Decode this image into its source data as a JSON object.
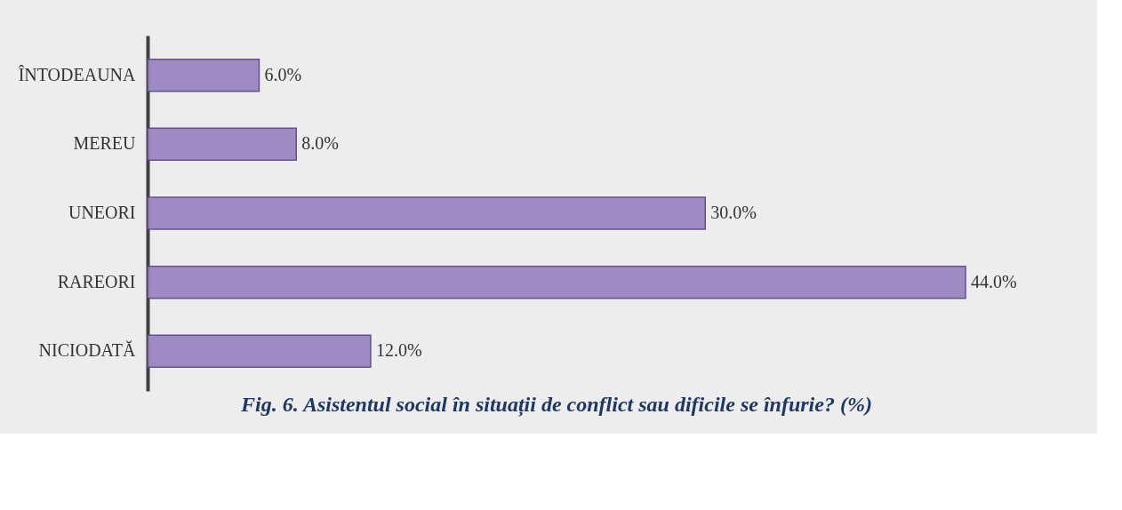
{
  "chart_data": {
    "type": "bar",
    "orientation": "horizontal",
    "title": "Fig. 6. Asistentul social în situații de conflict sau dificile se înfurie? (%)",
    "categories": [
      "ÎNTODEAUNA",
      "MEREU",
      "UNEORI",
      "RAREORI",
      "NICIODATĂ"
    ],
    "values": [
      6.0,
      8.0,
      30.0,
      44.0,
      12.0
    ],
    "value_labels": [
      "6.0%",
      "8.0%",
      "30.0%",
      "44.0%",
      "12.0%"
    ],
    "color": "#9a86c2",
    "grid": false
  }
}
